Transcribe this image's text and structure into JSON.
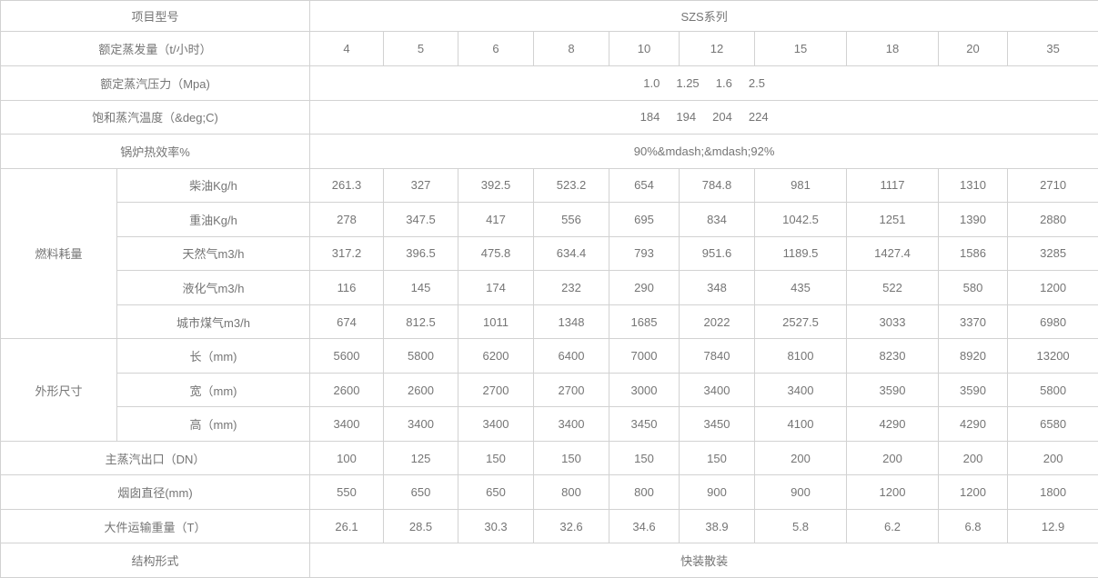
{
  "palette": {
    "text_color": "#757575",
    "border_color": "#d2d2d2",
    "background": "#ffffff"
  },
  "header_row": {
    "label": "项目型号",
    "series": "SZS系列"
  },
  "capacity_row": {
    "label": "额定蒸发量（t/小时）",
    "values": [
      "4",
      "5",
      "6",
      "8",
      "10",
      "12",
      "15",
      "18",
      "20",
      "35"
    ]
  },
  "pressure_row": {
    "label": "额定蒸汽压力（Mpa)",
    "value": "1.0     1.25     1.6     2.5"
  },
  "temperature_row": {
    "label": "饱和蒸汽温度（&deg;C)",
    "value": "184     194     204     224"
  },
  "efficiency_row": {
    "label": "锅炉热效率%",
    "value": "90%&mdash;&mdash;92%"
  },
  "fuel_group": {
    "label": "燃料耗量",
    "rows": [
      {
        "label": "柴油Kg/h",
        "values": [
          "261.3",
          "327",
          "392.5",
          "523.2",
          "654",
          "784.8",
          "981",
          "1117",
          "1310",
          "2710"
        ]
      },
      {
        "label": "重油Kg/h",
        "values": [
          "278",
          "347.5",
          "417",
          "556",
          "695",
          "834",
          "1042.5",
          "1251",
          "1390",
          "2880"
        ]
      },
      {
        "label": "天然气m3/h",
        "values": [
          "317.2",
          "396.5",
          "475.8",
          "634.4",
          "793",
          "951.6",
          "1189.5",
          "1427.4",
          "1586",
          "3285"
        ]
      },
      {
        "label": "液化气m3/h",
        "values": [
          "116",
          "145",
          "174",
          "232",
          "290",
          "348",
          "435",
          "522",
          "580",
          "1200"
        ]
      },
      {
        "label": "城市煤气m3/h",
        "values": [
          "674",
          "812.5",
          "1011",
          "1348",
          "1685",
          "2022",
          "2527.5",
          "3033",
          "3370",
          "6980"
        ]
      }
    ]
  },
  "dimension_group": {
    "label": "外形尺寸",
    "rows": [
      {
        "label": "长（mm)",
        "values": [
          "5600",
          "5800",
          "6200",
          "6400",
          "7000",
          "7840",
          "8100",
          "8230",
          "8920",
          "13200"
        ]
      },
      {
        "label": "宽（mm)",
        "values": [
          "2600",
          "2600",
          "2700",
          "2700",
          "3000",
          "3400",
          "3400",
          "3590",
          "3590",
          "5800"
        ]
      },
      {
        "label": "高（mm)",
        "values": [
          "3400",
          "3400",
          "3400",
          "3400",
          "3450",
          "3450",
          "4100",
          "4290",
          "4290",
          "6580"
        ]
      }
    ]
  },
  "outlet_row": {
    "label": "主蒸汽出口（DN）",
    "values": [
      "100",
      "125",
      "150",
      "150",
      "150",
      "150",
      "200",
      "200",
      "200",
      "200"
    ]
  },
  "chimney_row": {
    "label": "烟囱直径(mm)",
    "values": [
      "550",
      "650",
      "650",
      "800",
      "800",
      "900",
      "900",
      "1200",
      "1200",
      "1800"
    ]
  },
  "transport_row": {
    "label": "大件运输重量（T）",
    "values": [
      "26.1",
      "28.5",
      "30.3",
      "32.6",
      "34.6",
      "38.9",
      "5.8",
      "6.2",
      "6.8",
      "12.9"
    ]
  },
  "structure_row": {
    "label": "结构形式",
    "value": "快装散装"
  }
}
